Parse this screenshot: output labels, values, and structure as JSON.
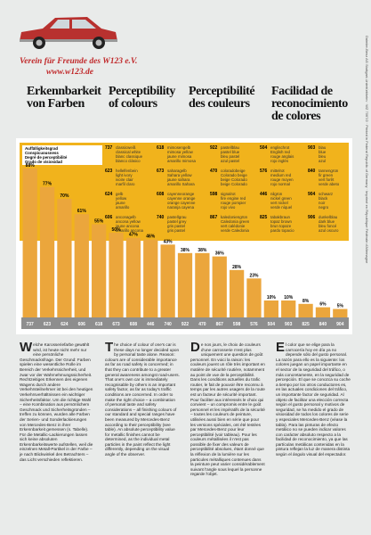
{
  "header": {
    "club": "Verein für Freunde des W123 e.V.",
    "url": "www.w123.de"
  },
  "headings": [
    "Erkennbarkeit von Farben",
    "Perceptibility of colours",
    "Perceptibilité des couleurs",
    "Facilidad de reconocimiento de colores"
  ],
  "legend_title": [
    "Auffälligkeitsgrad",
    "Conspicuousness",
    "Degré de perceptibilité",
    "Grado de visiosidad"
  ],
  "color_table": [
    [
      {
        "code": "737",
        "names": [
          "classicweiß",
          "classical white",
          "blanc classique",
          "blanco clásico"
        ]
      },
      {
        "code": "623",
        "names": [
          "hellelfenbein",
          "light ivory",
          "ivoire clair",
          "marfil claro"
        ]
      },
      {
        "code": "624",
        "names": [
          "gelb",
          "yellow",
          "jaune",
          "amarillo"
        ]
      },
      {
        "code": "606",
        "names": [
          "anconagelb",
          "ancona yellow",
          "jaune ancona",
          "amarillo ancona"
        ]
      }
    ],
    [
      {
        "code": "618",
        "names": [
          "mimosengelb",
          "mimosa yellow",
          "jaune mimosa",
          "amarillo mimosa"
        ]
      },
      {
        "code": "673",
        "names": [
          "saharagelb",
          "Sahara yellow",
          "jaune sahara",
          "amarillo Sahara"
        ]
      },
      {
        "code": "608",
        "names": [
          "cayenneorange",
          "cayenne orange",
          "orange cayenne",
          "naranja cayena"
        ]
      },
      {
        "code": "740",
        "names": [
          "pastellgrau",
          "pastel grey",
          "gris pastel",
          "gris pastel"
        ]
      }
    ],
    [
      {
        "code": "922",
        "names": [
          "pastellblau",
          "pastel blue",
          "bleu pastel",
          "azul pastel"
        ]
      },
      {
        "code": "470",
        "names": [
          "coloradobeige",
          "Colorado beige",
          "beige Colorado",
          "beige Colorado"
        ]
      },
      {
        "code": "598",
        "names": [
          "signalrot",
          "fire engine red",
          "rouge pompier",
          "rojo vivo"
        ]
      },
      {
        "code": "867",
        "names": [
          "kaledoniengrün",
          "Caledonia green",
          "vert calédonie",
          "verde Caledonia"
        ]
      }
    ],
    [
      {
        "code": "504",
        "names": [
          "englischrot",
          "English red",
          "rouge anglais",
          "rojo inglés"
        ]
      },
      {
        "code": "576",
        "names": [
          "mittelrot",
          "medium red",
          "rouge moyen",
          "rojo normal"
        ]
      },
      {
        "code": "446",
        "names": [
          "nilgrün",
          "nickel green",
          "vert nickel",
          "verde níquel"
        ]
      },
      {
        "code": "825",
        "names": [
          "tabakbraun",
          "topaz brown",
          "brun topaze",
          "pardo topacio"
        ]
      }
    ],
    [
      {
        "code": "903",
        "names": [
          "blau",
          "blue",
          "bleu",
          "azul"
        ]
      },
      {
        "code": "840",
        "names": [
          "tannengrün",
          "fir green",
          "vert forêt",
          "verde abeto"
        ]
      },
      {
        "code": "904",
        "names": [
          "schwarz",
          "black",
          "noir",
          "negro"
        ]
      },
      {
        "code": "906",
        "names": [
          "dunkelblau",
          "dark blue",
          "bleu foncé",
          "azul oscuro"
        ]
      }
    ]
  ],
  "chart_data": {
    "type": "bar",
    "color": "#eba63c",
    "categories": [
      "737",
      "623",
      "624",
      "606",
      "618",
      "673",
      "608",
      "446",
      "740",
      "922",
      "470",
      "867",
      "598",
      "576",
      "504",
      "903",
      "825",
      "840",
      "904"
    ],
    "values": [
      88,
      77,
      70,
      61,
      55,
      50,
      47,
      46,
      43,
      38,
      38,
      36,
      28,
      23,
      10,
      10,
      8,
      6,
      5
    ],
    "value_labels": [
      "88%",
      "77%",
      "70%",
      "61%",
      "55%",
      "50%",
      "47%",
      "46%",
      "43%",
      "38%",
      "38%",
      "36%",
      "28%",
      "23%",
      "10%",
      "10%",
      "8%",
      "6%",
      "5%"
    ]
  },
  "body": [
    "Welche Karosseriefarbe gewählt wird, ist heute nicht mehr nur eine persönliche Geschmacksfrage. Der Grund: Farben spielen eine wesentliche Rolle im Bereich der Verkehrssicherheit, und zwar vor der Wahrnehmungssicherheit. Rechtzeitiges Erkennen des eigenen Wagens durch andere Verkehrsteilnehmer ist bei den heutigen Verkehrsverhältnissen ein wichtiger Sicherheitsfaktor. Um die richtige Wahl – eine Kombination aus persönlichem Geschmack und Sicherheitsgründen – treffen zu können, wurden alle Farben der Serien- und Sonderlackierungen von Mercedes-Benz in ihrer Erkennbarkeit gemessen (s. Tabelle). Für die Metallic-Lackierungen lassen sich keine absoluten Erkennbarkeitswerte aufstellen, weil die einzelnen Metall-Partikel in der Farbe – je nach Blickwinkel des Betrachters – das Licht verschieden reflektieren.",
    "The choice of colour of one's car is these days no longer decided upon by personal taste alone. Reason: colours are of considerable importance as far as road safety is concerned; in that they can contribute to a greater general awareness amongst road-users. That one's own car is immediately recognisable by others is an important safety factor, as far as today's traffic conditions are concerned. In order to make the right choice – a combination of personal taste and safety considerations – all finishing colours of our standard and special ranges have been measured by Mercedes-Benz according to their perceptibility (see table). An absolute perceptibility value for metallic finishes cannot be determined, as the individual metal particles in the paint reflect the light differently, depending on the visual angle of the observer.",
    "De nos jours, le choix de couleurs d'une carrosserie n'est plus uniquement une question de goût personnel. En voici la raison: les couleurs jouent un rôle très important en matière de sécurité routière, notamment au point de vue de la perceptibilité. Dans les conditions actuelles du trafic routier, le fait de pouvoir être reconnu à temps par les autres usagers de la route est un facteur de sécurité important. Pour faciliter aux intéressés le choix qui convient – un compromis entre le goût personnel et les impératifs de la sécurité – toutes les couleurs de peinture, utilisées aussi bien en série que pour les versions spéciales, ont été testées par Mercedes-Benz pour leur perceptibilité (voir tableau). Pour les couleurs métallisées il n'est pas possible de fixer des valeurs de perceptibilité absolues, étant donné que la réflexion de la lumière sur les particules métalliques contenues dans la peinture peut varier considérablement suivant l'angle sous lequel la personne regarde l'objet.",
    "El color que se elige para la carrocería hoy en día ya no depende sólo del gusto personal. La razón para ello es la siguiente: los colores juegan un papel importante en el sector de la seguridad del tráfico, o más concretamente, en la seguridad de percepción. El que se conozca su coche a tiempo por los otros conductores es, en las actuales condiciones del tráfico, un importante factor de seguridad. Al objeto de facilitar una elección correcta según el gusto personal y motivos de seguridad, se ha medido el grado de visiosidad de todos los colores de serie y especiales Mercedes-Benz (véase la tabla). Para las pinturas de efecto metálico no se pueden indicar valores con carácter absoluto respecto a la facilidad de reconocimiento, ya que las partículas metálicas contenidas en la pintura reflejan la luz de manera distinta según el ángulo visual del espectador."
  ],
  "side_note": "Daimler-Benz AG Stuttgart-Untertürkheim · WZ 7067/2 · Printed in Federal Republic of Germany · Imprimé en République Fédérale d'Allemagne"
}
